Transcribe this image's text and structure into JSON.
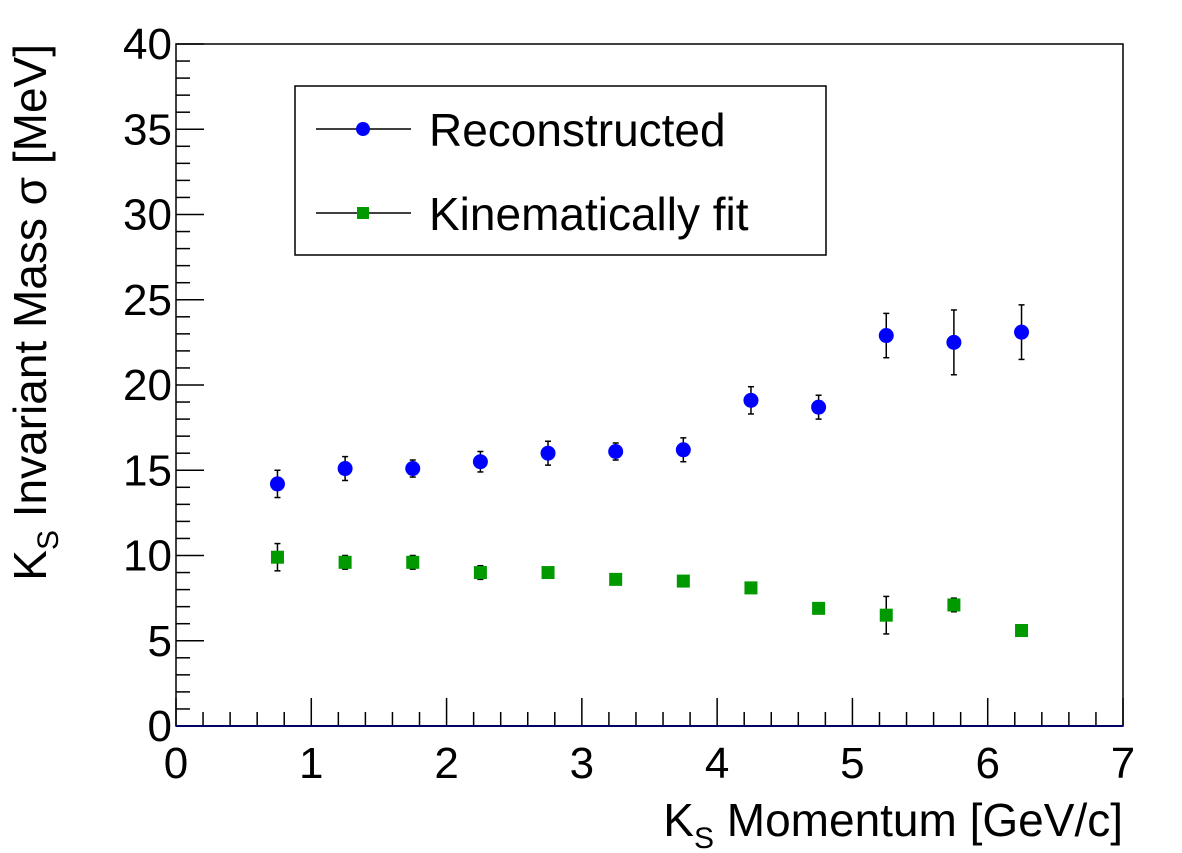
{
  "chart_data": {
    "type": "scatter",
    "xlabel": {
      "main": "K",
      "sub": "S",
      "rest": " Momentum [GeV/c]"
    },
    "ylabel": {
      "main": "K",
      "sub": "S",
      "rest": " Invariant Mass σ [MeV]"
    },
    "xlim": [
      0,
      7
    ],
    "ylim": [
      0,
      40
    ],
    "x_ticks": [
      "0",
      "1",
      "2",
      "3",
      "4",
      "5",
      "6",
      "7"
    ],
    "y_ticks": [
      "0",
      "5",
      "10",
      "15",
      "20",
      "25",
      "30",
      "35",
      "40"
    ],
    "grid": false,
    "legend_position": "top-left",
    "series": [
      {
        "name": "Reconstructed",
        "color": "#0000ff",
        "marker": "circle",
        "x": [
          0.75,
          1.25,
          1.75,
          2.25,
          2.75,
          3.25,
          3.75,
          4.25,
          4.75,
          5.25,
          5.75,
          6.25
        ],
        "y": [
          14.2,
          15.1,
          15.1,
          15.5,
          16.0,
          16.1,
          16.2,
          19.1,
          18.7,
          22.9,
          22.5,
          23.1
        ],
        "err": [
          0.8,
          0.7,
          0.5,
          0.6,
          0.7,
          0.5,
          0.7,
          0.8,
          0.7,
          1.3,
          1.9,
          1.6
        ]
      },
      {
        "name": "Kinematically fit",
        "color": "#009900",
        "marker": "square",
        "x": [
          0.75,
          1.25,
          1.75,
          2.25,
          2.75,
          3.25,
          3.75,
          4.25,
          4.75,
          5.25,
          5.75,
          6.25
        ],
        "y": [
          9.9,
          9.6,
          9.6,
          9.0,
          9.0,
          8.6,
          8.5,
          8.1,
          6.9,
          6.5,
          7.1,
          5.6
        ],
        "err": [
          0.8,
          0.4,
          0.4,
          0.4,
          0.3,
          0.3,
          0.3,
          0.3,
          0.3,
          1.1,
          0.4,
          0.3
        ]
      }
    ]
  }
}
